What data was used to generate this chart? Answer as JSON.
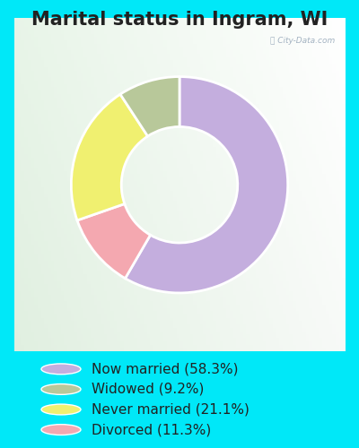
{
  "title": "Marital status in Ingram, WI",
  "slices": [
    58.3,
    11.3,
    21.1,
    9.2
  ],
  "labels": [
    "Now married (58.3%)",
    "Widowed (9.2%)",
    "Never married (21.1%)",
    "Divorced (11.3%)"
  ],
  "legend_colors": [
    "#c4aede",
    "#b8c89a",
    "#f0f070",
    "#f4a8b0"
  ],
  "slice_colors": [
    "#c4aede",
    "#f4a8b0",
    "#f0f070",
    "#b8c89a"
  ],
  "startangle": 90,
  "bg_cyan": "#00e8f8",
  "title_fontsize": 15,
  "legend_fontsize": 11,
  "watermark": "City-Data.com",
  "donut_width": 0.38
}
